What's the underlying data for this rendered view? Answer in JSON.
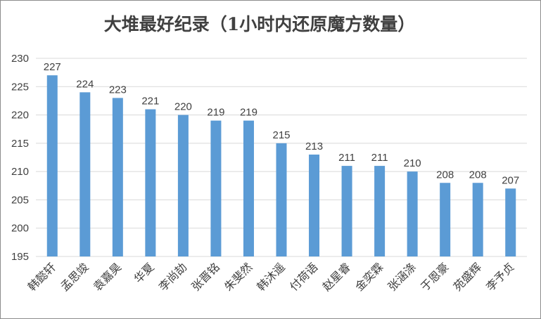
{
  "chart_data": {
    "type": "bar",
    "title": "大堆最好纪录（1小时内还原魔方数量）",
    "xlabel": "",
    "ylabel": "",
    "categories": [
      "韩懿轩",
      "孟思竣",
      "袁嘉昊",
      "华夏",
      "李尚劼",
      "张晋铭",
      "朱斐然",
      "韩沐遥",
      "付荷语",
      "赵星睿",
      "金奕霖",
      "张涵涤",
      "于恩豪",
      "苑盛辉",
      "李予贞"
    ],
    "values": [
      227,
      224,
      223,
      221,
      220,
      219,
      219,
      215,
      213,
      211,
      211,
      210,
      208,
      208,
      207
    ],
    "ylim": [
      195,
      230
    ],
    "yticks": [
      195,
      200,
      205,
      210,
      215,
      220,
      225,
      230
    ],
    "grid": true,
    "legend": "none",
    "bar_color": "#5b9bd5"
  }
}
